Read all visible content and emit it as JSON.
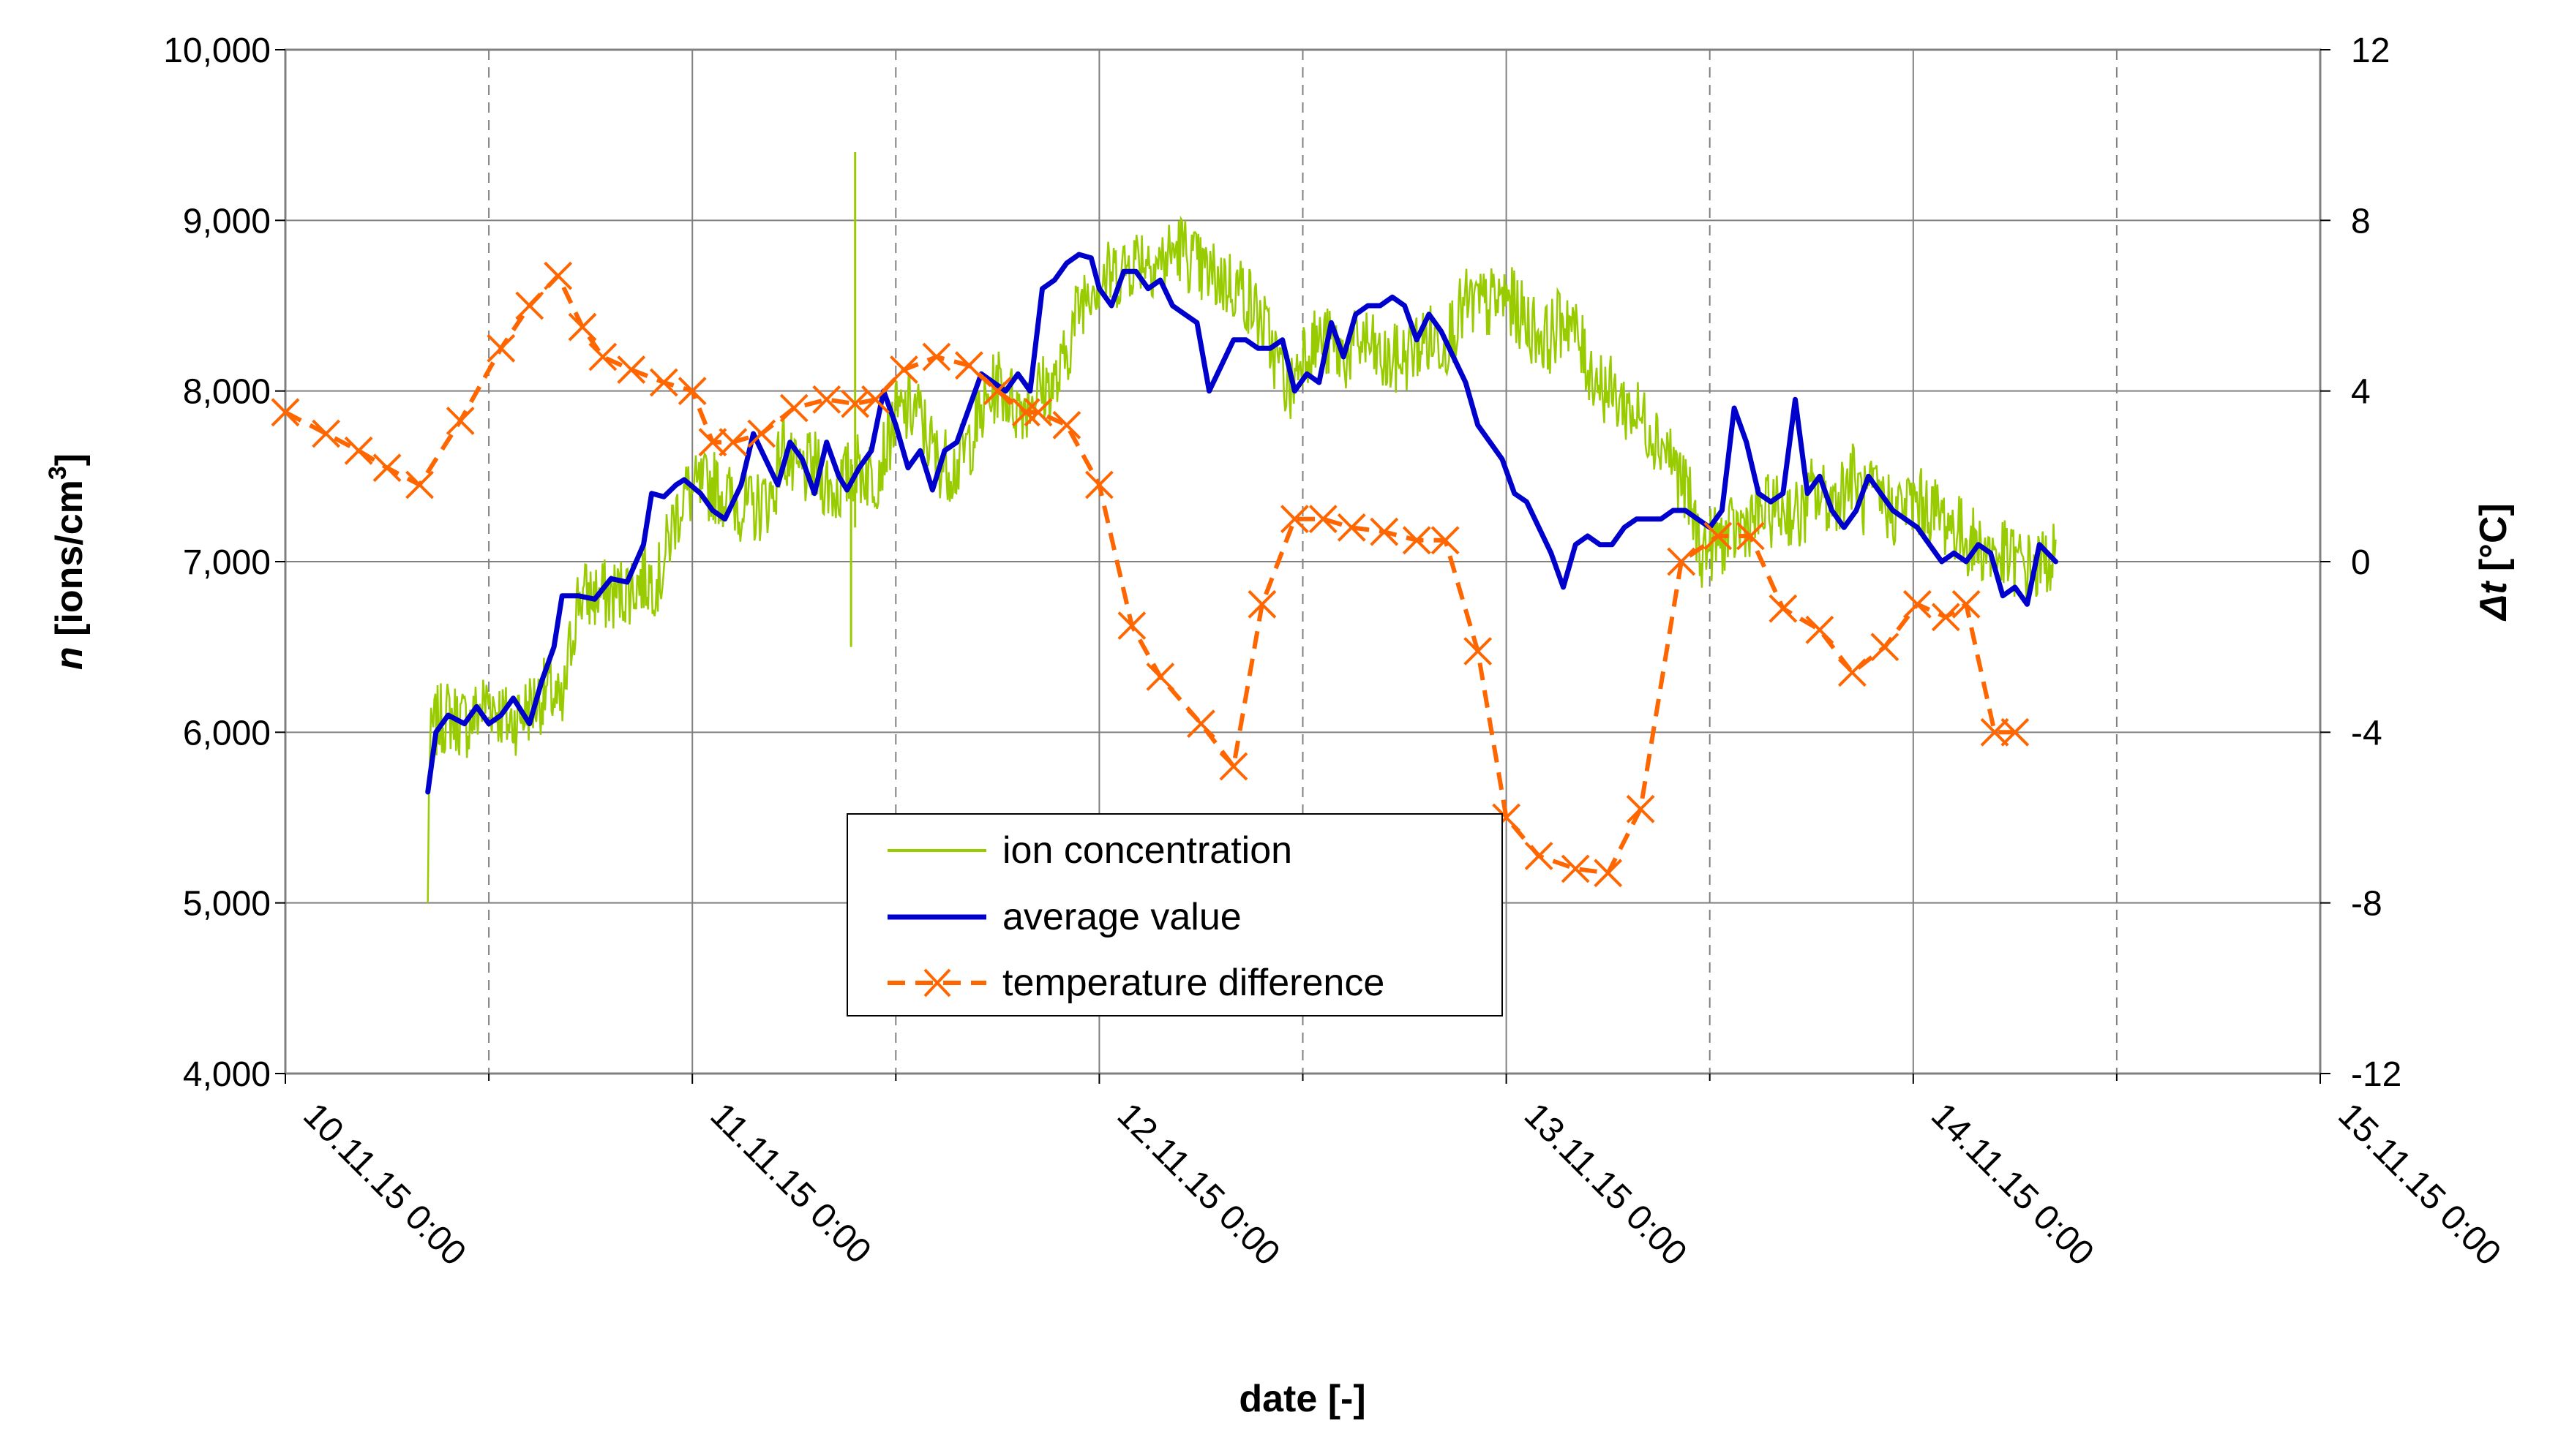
{
  "chart_data": {
    "type": "line",
    "title": "",
    "xlabel": "date [-]",
    "ylabel_left": {
      "var": "n",
      "unit_pre": "[ions/cm",
      "unit_sup": "3",
      "unit_post": "]"
    },
    "ylabel_right": {
      "var": "Δt",
      "unit": "[°C]"
    },
    "x_range": [
      0,
      5
    ],
    "x_ticks": [
      {
        "value": 0,
        "label": "10.11.15 0:00"
      },
      {
        "value": 1,
        "label": "11.11.15 0:00"
      },
      {
        "value": 2,
        "label": "12.11.15 0:00"
      },
      {
        "value": 3,
        "label": "13.11.15 0:00"
      },
      {
        "value": 4,
        "label": "14.11.15 0:00"
      },
      {
        "value": 5,
        "label": "15.11.15 0:00"
      }
    ],
    "y_left_range": [
      4000,
      10000
    ],
    "y_left_ticks": [
      {
        "value": 4000,
        "label": "4,000"
      },
      {
        "value": 5000,
        "label": "5,000"
      },
      {
        "value": 6000,
        "label": "6,000"
      },
      {
        "value": 7000,
        "label": "7,000"
      },
      {
        "value": 8000,
        "label": "8,000"
      },
      {
        "value": 9000,
        "label": "9,000"
      },
      {
        "value": 10000,
        "label": "10,000"
      }
    ],
    "y_right_range": [
      -12,
      12
    ],
    "y_right_ticks": [
      {
        "value": -12,
        "label": "-12"
      },
      {
        "value": -8,
        "label": "-8"
      },
      {
        "value": -4,
        "label": "-4"
      },
      {
        "value": 0,
        "label": "0"
      },
      {
        "value": 4,
        "label": "4"
      },
      {
        "value": 8,
        "label": "8"
      },
      {
        "value": 12,
        "label": "12"
      }
    ],
    "grid": {
      "horizontal": true,
      "vertical_solid_at_days": true,
      "vertical_dashed_at_noon": true
    },
    "legend_position": "bottom-center",
    "series": [
      {
        "name": "ion concentration",
        "axis": "left",
        "color": "#99cc00",
        "style": "noisy-line",
        "noise_amplitude": 220,
        "x": [
          0.35,
          0.36,
          0.37,
          0.4,
          0.45,
          0.5,
          0.55,
          0.6,
          0.65,
          0.68,
          0.7,
          0.72,
          0.75,
          0.8,
          0.85,
          0.88,
          0.92,
          0.95,
          0.98,
          1.0,
          1.05,
          1.1,
          1.15,
          1.2,
          1.22,
          1.25,
          1.3,
          1.35,
          1.4,
          1.45,
          1.5,
          1.55,
          1.6,
          1.65,
          1.7,
          1.75,
          1.8,
          1.85,
          1.9,
          1.95,
          1.98,
          2.0,
          2.05,
          2.1,
          2.15,
          2.2,
          2.25,
          2.3,
          2.35,
          2.4,
          2.45,
          2.47,
          2.5,
          2.55,
          2.6,
          2.65,
          2.7,
          2.75,
          2.8,
          2.85,
          2.9,
          2.95,
          3.0,
          3.05,
          3.1,
          3.15,
          3.2,
          3.25,
          3.3,
          3.35,
          3.4,
          3.45,
          3.48,
          3.5,
          3.55,
          3.6,
          3.65,
          3.7,
          3.72,
          3.75,
          3.8,
          3.85,
          3.88,
          3.9,
          3.95,
          4.0,
          4.05,
          4.1,
          4.15,
          4.2,
          4.25,
          4.3,
          4.35
        ],
        "y": [
          5650,
          6000,
          6050,
          6100,
          6050,
          6200,
          6050,
          6150,
          6250,
          6100,
          6500,
          6800,
          6800,
          6800,
          6850,
          6900,
          6900,
          7200,
          7400,
          7400,
          7450,
          7350,
          7300,
          7400,
          7700,
          7500,
          7550,
          7400,
          7550,
          7500,
          7850,
          7900,
          7600,
          7550,
          7800,
          8050,
          7900,
          8000,
          8050,
          8500,
          8650,
          8650,
          8700,
          8800,
          8750,
          8850,
          8700,
          8650,
          8600,
          8400,
          8100,
          8000,
          8250,
          8300,
          8200,
          8300,
          8150,
          8200,
          8300,
          8300,
          8500,
          8500,
          8550,
          8400,
          8300,
          8450,
          8150,
          8000,
          7900,
          7800,
          7650,
          7350,
          7050,
          7100,
          7150,
          7250,
          7300,
          7300,
          7250,
          7400,
          7350,
          7500,
          7350,
          7400,
          7300,
          7350,
          7300,
          7200,
          7100,
          7050,
          7000,
          6950,
          7050
        ]
      },
      {
        "name": "average value",
        "axis": "left",
        "color": "#0000cc",
        "style": "line",
        "x": [
          0.35,
          0.37,
          0.4,
          0.44,
          0.47,
          0.5,
          0.53,
          0.56,
          0.6,
          0.63,
          0.66,
          0.68,
          0.7,
          0.72,
          0.76,
          0.8,
          0.84,
          0.88,
          0.9,
          0.93,
          0.96,
          0.98,
          1.02,
          1.05,
          1.08,
          1.12,
          1.15,
          1.18,
          1.21,
          1.24,
          1.27,
          1.3,
          1.33,
          1.36,
          1.38,
          1.41,
          1.44,
          1.47,
          1.5,
          1.53,
          1.56,
          1.59,
          1.62,
          1.65,
          1.68,
          1.71,
          1.74,
          1.77,
          1.8,
          1.83,
          1.86,
          1.89,
          1.92,
          1.95,
          1.98,
          2.0,
          2.03,
          2.06,
          2.09,
          2.12,
          2.15,
          2.18,
          2.21,
          2.24,
          2.27,
          2.3,
          2.33,
          2.36,
          2.39,
          2.42,
          2.45,
          2.48,
          2.51,
          2.54,
          2.57,
          2.6,
          2.63,
          2.66,
          2.69,
          2.72,
          2.75,
          2.78,
          2.81,
          2.84,
          2.87,
          2.9,
          2.93,
          2.96,
          2.99,
          3.02,
          3.05,
          3.08,
          3.11,
          3.14,
          3.17,
          3.2,
          3.23,
          3.26,
          3.29,
          3.32,
          3.35,
          3.38,
          3.41,
          3.44,
          3.47,
          3.5,
          3.53,
          3.56,
          3.59,
          3.62,
          3.65,
          3.68,
          3.71,
          3.74,
          3.77,
          3.8,
          3.83,
          3.86,
          3.89,
          3.92,
          3.95,
          3.98,
          4.01,
          4.04,
          4.07,
          4.1,
          4.13,
          4.16,
          4.19,
          4.22,
          4.25,
          4.28,
          4.31,
          4.35
        ],
        "y": [
          5650,
          6000,
          6100,
          6050,
          6150,
          6050,
          6100,
          6200,
          6050,
          6300,
          6500,
          6800,
          6800,
          6800,
          6780,
          6900,
          6880,
          7100,
          7400,
          7380,
          7450,
          7480,
          7400,
          7300,
          7250,
          7450,
          7750,
          7600,
          7450,
          7700,
          7600,
          7400,
          7700,
          7500,
          7420,
          7550,
          7650,
          8000,
          7800,
          7550,
          7650,
          7420,
          7650,
          7700,
          7900,
          8100,
          8050,
          8000,
          8100,
          8000,
          8600,
          8650,
          8750,
          8800,
          8780,
          8600,
          8500,
          8700,
          8700,
          8600,
          8650,
          8500,
          8450,
          8400,
          8000,
          8150,
          8300,
          8300,
          8250,
          8250,
          8300,
          8000,
          8100,
          8050,
          8400,
          8200,
          8450,
          8500,
          8500,
          8550,
          8500,
          8300,
          8450,
          8350,
          8200,
          8050,
          7800,
          7700,
          7600,
          7400,
          7350,
          7200,
          7050,
          6850,
          7100,
          7150,
          7100,
          7100,
          7200,
          7250,
          7250,
          7250,
          7300,
          7300,
          7250,
          7200,
          7300,
          7900,
          7700,
          7400,
          7350,
          7400,
          7950,
          7400,
          7500,
          7300,
          7200,
          7300,
          7500,
          7400,
          7300,
          7250,
          7200,
          7100,
          7000,
          7050,
          7000,
          7100,
          7050,
          6800,
          6850,
          6750,
          7100,
          7000
        ],
        "y_note": "smoothed running average"
      },
      {
        "name": "temperature difference",
        "axis": "right",
        "color": "#ff6600",
        "style": "dashed-markers",
        "marker": "x",
        "x": [
          0.0,
          0.1,
          0.18,
          0.25,
          0.33,
          0.43,
          0.53,
          0.6,
          0.67,
          0.73,
          0.78,
          0.85,
          0.93,
          1.0,
          1.05,
          1.1,
          1.17,
          1.25,
          1.33,
          1.4,
          1.45,
          1.52,
          1.6,
          1.68,
          1.75,
          1.82,
          1.85,
          1.92,
          2.0,
          2.08,
          2.15,
          2.25,
          2.33,
          2.4,
          2.48,
          2.55,
          2.62,
          2.7,
          2.78,
          2.85,
          2.93,
          3.0,
          3.08,
          3.17,
          3.25,
          3.33,
          3.43,
          3.52,
          3.6,
          3.68,
          3.77,
          3.85,
          3.93,
          4.01,
          4.08,
          4.13,
          4.2,
          4.25
        ],
        "y": [
          3.5,
          3.0,
          2.6,
          2.2,
          1.8,
          3.3,
          5.0,
          6.0,
          6.7,
          5.5,
          4.8,
          4.5,
          4.2,
          4.0,
          2.8,
          2.8,
          3.0,
          3.6,
          3.8,
          3.7,
          3.8,
          4.5,
          4.8,
          4.6,
          4.0,
          3.5,
          3.5,
          3.2,
          1.8,
          -1.5,
          -2.7,
          -3.8,
          -4.8,
          -1.0,
          1.0,
          1.0,
          0.8,
          0.7,
          0.5,
          0.5,
          -2.1,
          -6.0,
          -6.9,
          -7.2,
          -7.3,
          -5.8,
          0.0,
          0.6,
          0.6,
          -1.1,
          -1.6,
          -2.6,
          -2.0,
          -1.0,
          -1.3,
          -1.0,
          -4.0,
          -4.0
        ],
        "y_note": "markers plotted at sampled points"
      }
    ]
  }
}
